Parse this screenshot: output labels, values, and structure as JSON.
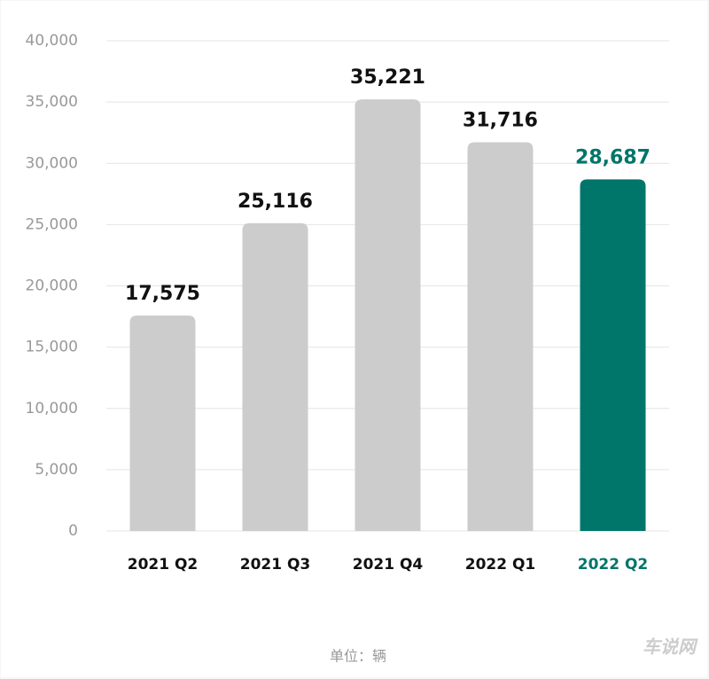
{
  "chart_data": {
    "type": "bar",
    "categories": [
      "2021 Q2",
      "2021 Q3",
      "2021 Q4",
      "2022 Q1",
      "2022 Q2"
    ],
    "values": [
      17575,
      25116,
      35221,
      31716,
      28687
    ],
    "value_labels": [
      "17,575",
      "25,116",
      "35,221",
      "31,716",
      "28,687"
    ],
    "colors": [
      "#cccccc",
      "#cccccc",
      "#cccccc",
      "#cccccc",
      "#00756a"
    ],
    "label_colors": [
      "#111111",
      "#111111",
      "#111111",
      "#111111",
      "#00756a"
    ],
    "ylim": [
      0,
      40000
    ],
    "yticks": [
      0,
      {
        "value": 5000,
        "label": "5,000"
      },
      {
        "value": 10000,
        "label": "10,000"
      },
      {
        "value": 15000,
        "label": "15,000"
      },
      {
        "value": 20000,
        "label": "20,000"
      },
      {
        "value": 25000,
        "label": "25,000"
      },
      {
        "value": 30000,
        "label": "30,000"
      },
      {
        "value": 35000,
        "label": "35,000"
      },
      {
        "value": 40000,
        "label": "40,000"
      }
    ],
    "grid": true,
    "xlabel": "单位：辆",
    "watermark": "车说网"
  }
}
